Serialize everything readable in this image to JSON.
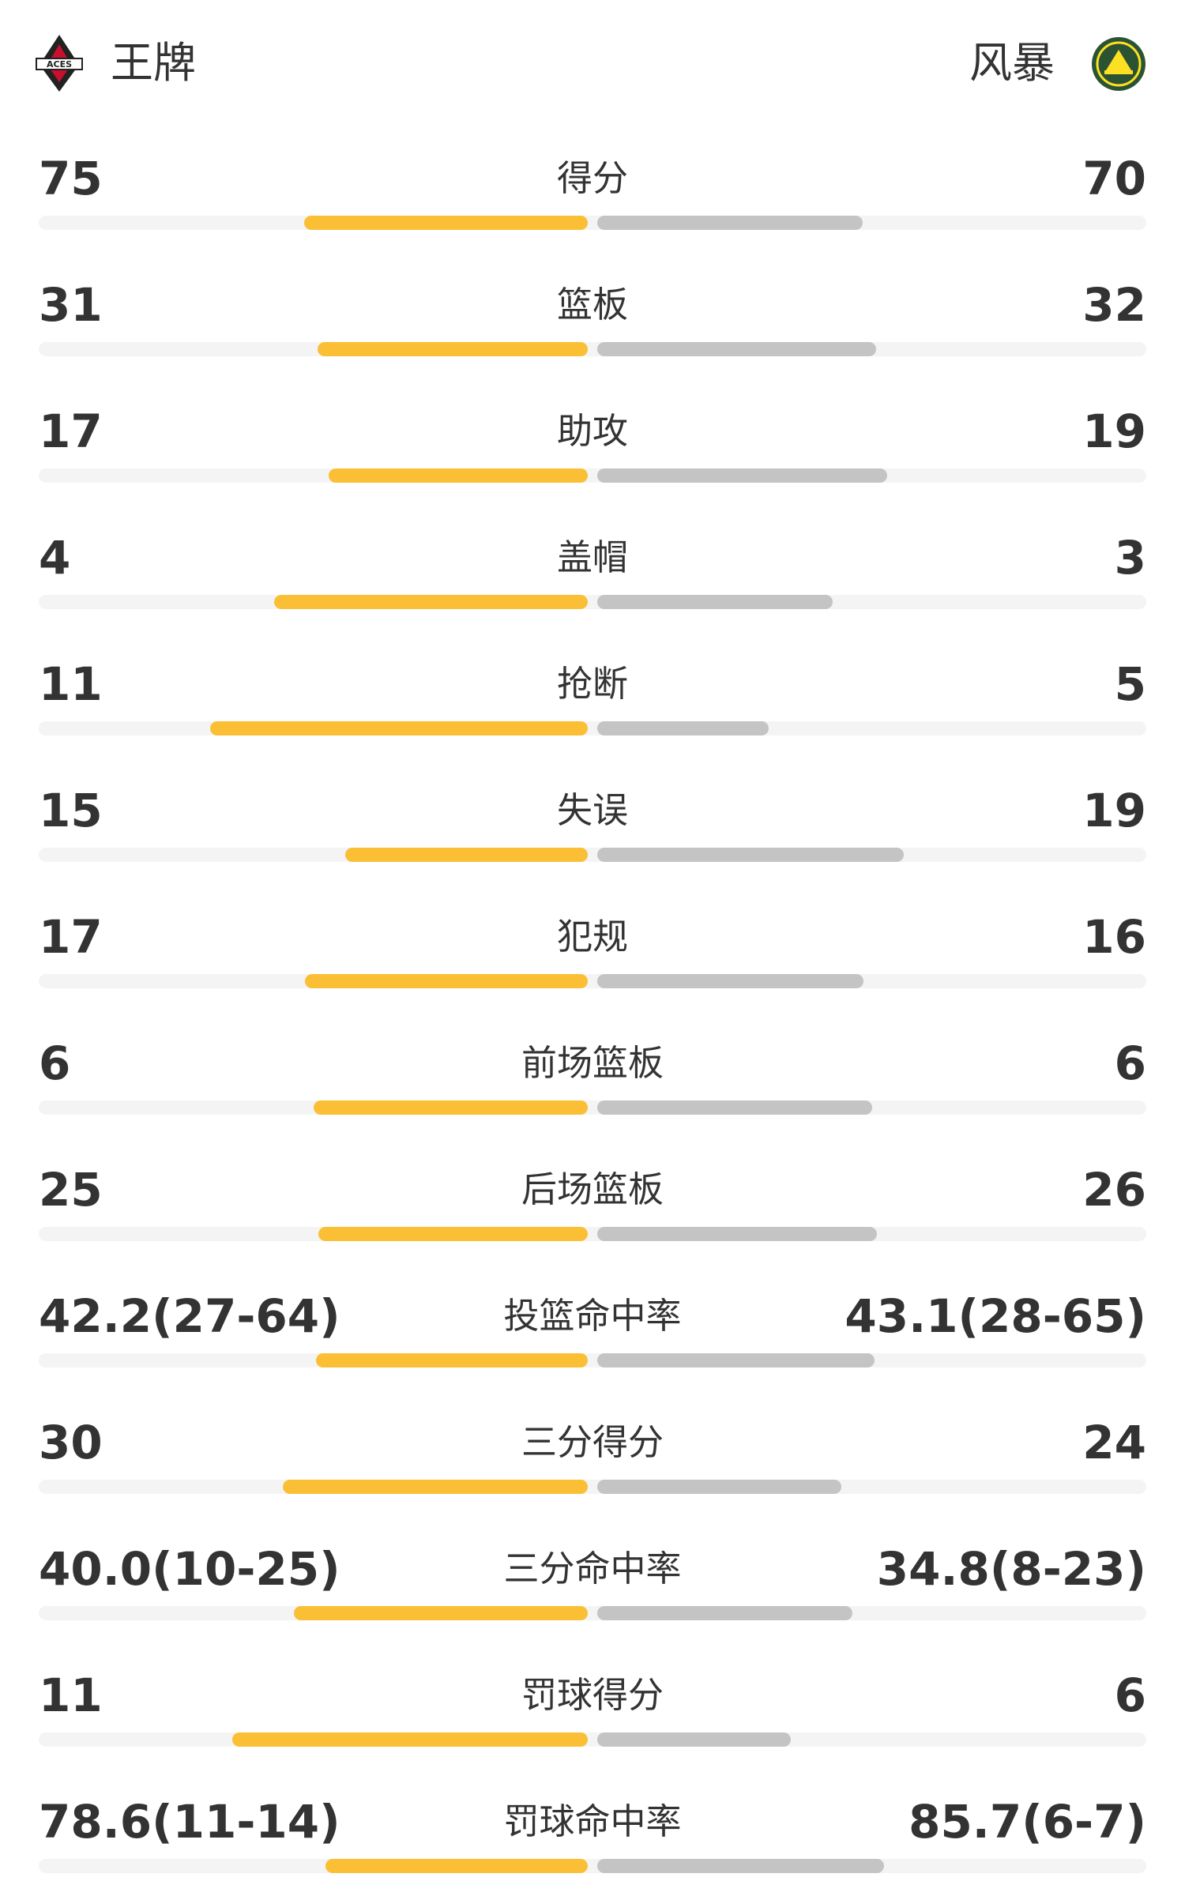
{
  "header": {
    "home": "王牌",
    "away": "风暴"
  },
  "rows": [
    {
      "label": "得分",
      "home": 75,
      "away": 70
    },
    {
      "label": "篮板",
      "home": 31,
      "away": 32
    },
    {
      "label": "助攻",
      "home": 17,
      "away": 19
    },
    {
      "label": "盖帽",
      "home": 4,
      "away": 3
    },
    {
      "label": "抢断",
      "home": 11,
      "away": 5
    },
    {
      "label": "失误",
      "home": 15,
      "away": 19
    },
    {
      "label": "犯规",
      "home": 17,
      "away": 16
    },
    {
      "label": "前场篮板",
      "home": 6,
      "away": 6
    },
    {
      "label": "后场篮板",
      "home": 25,
      "away": 26
    },
    {
      "label": "投篮命中率",
      "home": 42.2,
      "home_label": "42.2(27-64)",
      "away": 43.1,
      "away_label": "43.1(28-65)"
    },
    {
      "label": "三分得分",
      "home": 30,
      "away": 24
    },
    {
      "label": "三分命中率",
      "home": 40.0,
      "home_label": "40.0(10-25)",
      "away": 34.8,
      "away_label": "34.8(8-23)"
    },
    {
      "label": "罚球得分",
      "home": 11,
      "away": 6
    },
    {
      "label": "罚球命中率",
      "home": 78.6,
      "home_label": "78.6(11-14)",
      "away": 85.7,
      "away_label": "85.7(6-7)"
    }
  ]
}
